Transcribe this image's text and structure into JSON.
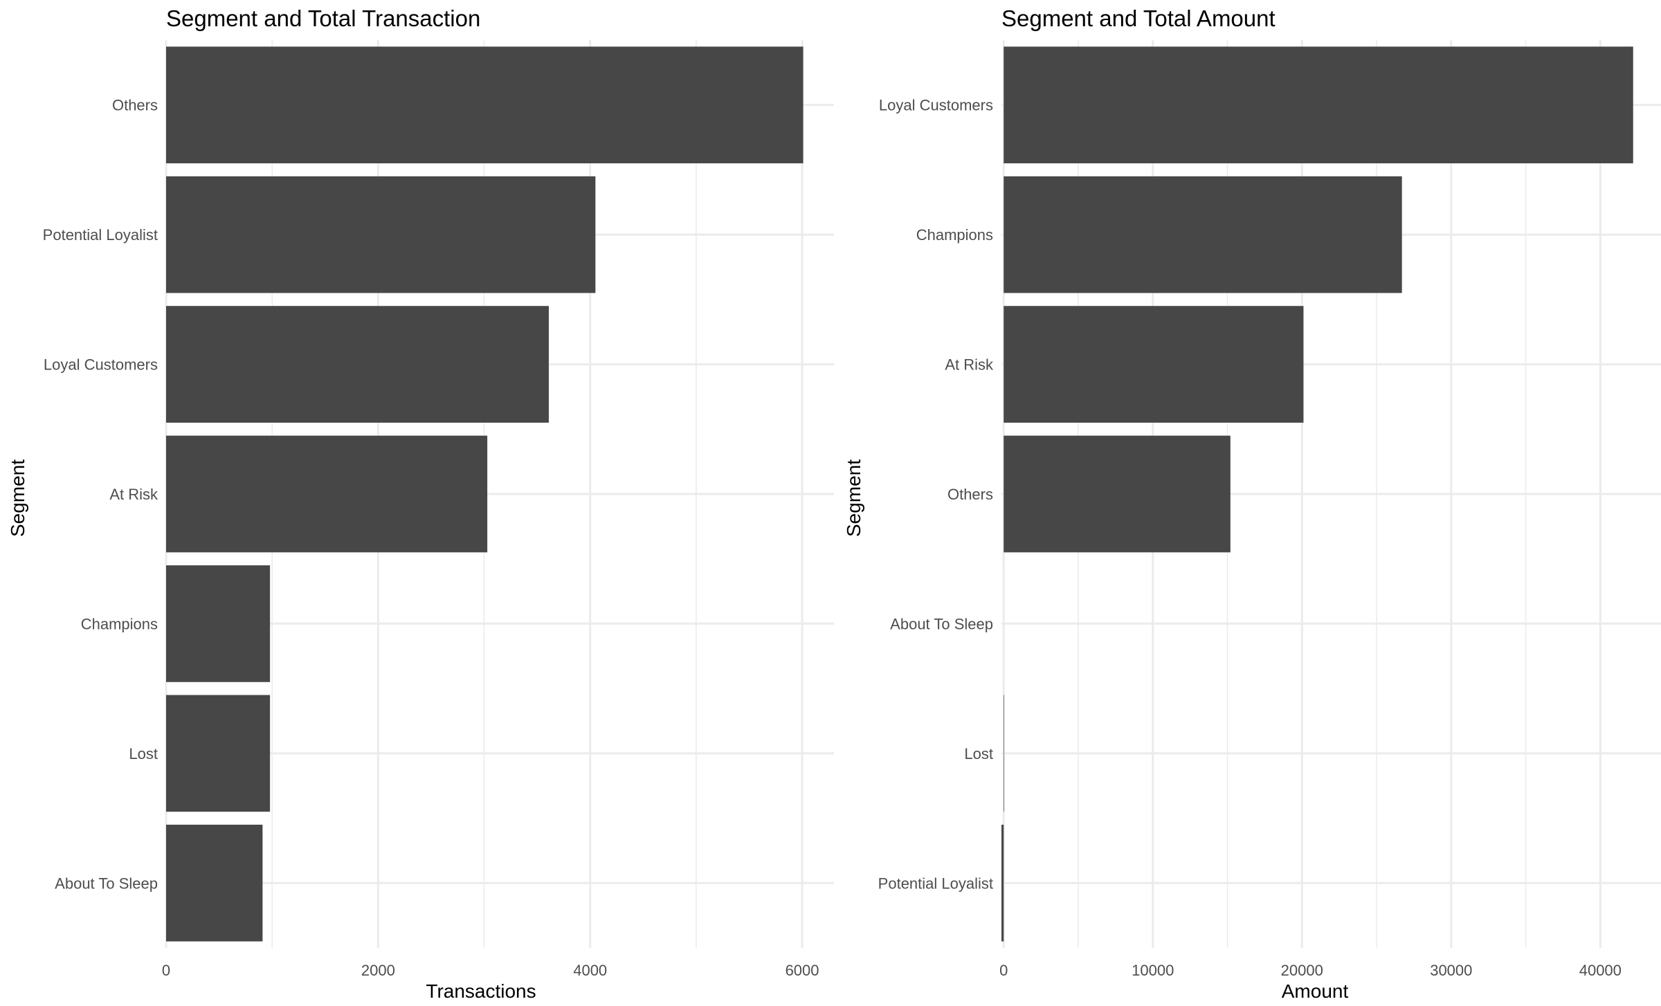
{
  "chart_data": [
    {
      "type": "bar",
      "orientation": "horizontal",
      "title": "Segment and Total Transaction",
      "xlabel": "Transactions",
      "ylabel": "Segment",
      "categories": [
        "Others",
        "Potential Loyalist",
        "Loyal Customers",
        "At Risk",
        "Champions",
        "Lost",
        "About To Sleep"
      ],
      "values": [
        6010,
        4050,
        3610,
        3030,
        980,
        980,
        910
      ],
      "xlim": [
        0,
        6300
      ],
      "xticks": [
        0,
        2000,
        4000,
        6000
      ],
      "grid": true,
      "bar_color": "#474747"
    },
    {
      "type": "bar",
      "orientation": "horizontal",
      "title": "Segment and Total Amount",
      "xlabel": "Amount",
      "ylabel": "Segment",
      "categories": [
        "Loyal Customers",
        "Champions",
        "At Risk",
        "Others",
        "About To Sleep",
        "Lost",
        "Potential Loyalist"
      ],
      "values": [
        42200,
        26700,
        20100,
        15200,
        0,
        30,
        -150
      ],
      "xlim": [
        -150,
        44300
      ],
      "xticks": [
        0,
        10000,
        20000,
        30000,
        40000
      ],
      "grid": true,
      "bar_color": "#474747"
    }
  ]
}
